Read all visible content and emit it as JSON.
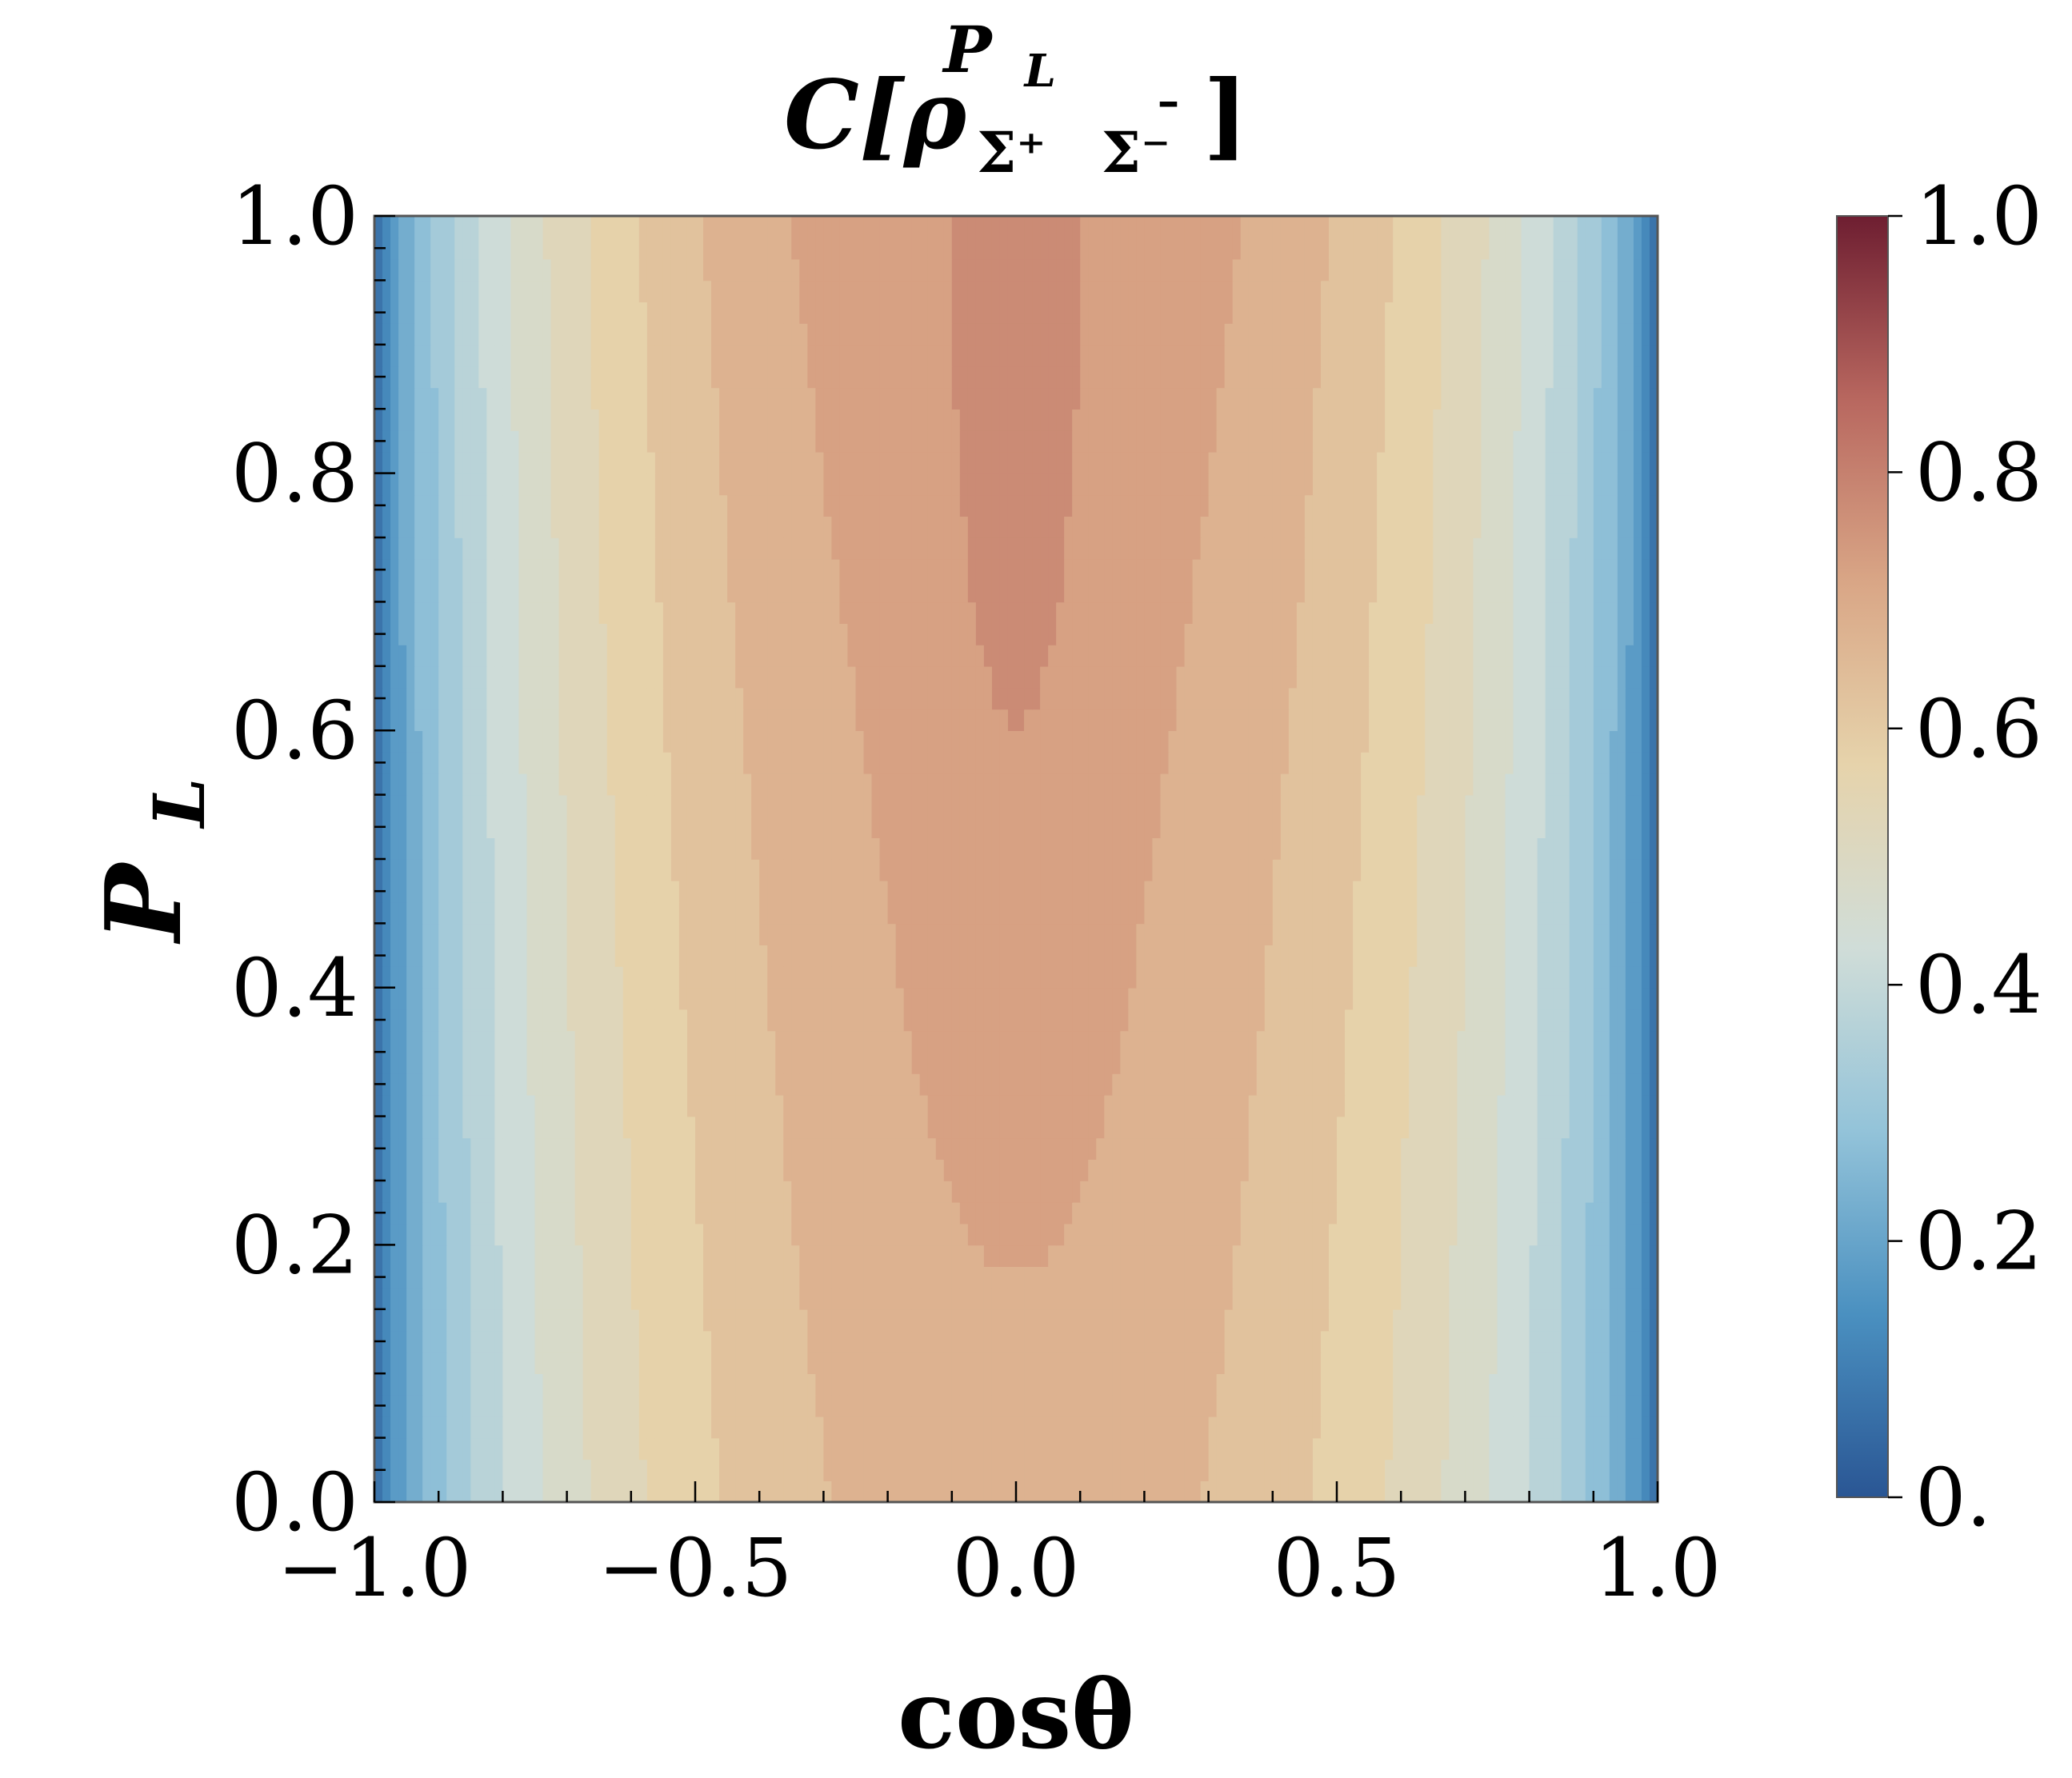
{
  "chart_data": {
    "type": "heatmap",
    "title": {
      "base": "C[ρ",
      "superscript_main": "P",
      "superscript_sub": "L",
      "subscript_first": "Σ⁺",
      "subscript_second_bar": "¯",
      "subscript_second": "Σ⁻",
      "close": "]"
    },
    "xlabel": "cosθ",
    "ylabel": {
      "main": "P",
      "sub": "L"
    },
    "xlim": [
      -1.0,
      1.0
    ],
    "ylim": [
      0.0,
      1.0
    ],
    "x_ticks": [
      {
        "value": -1.0,
        "label": "−1.0"
      },
      {
        "value": -0.5,
        "label": "−0.5"
      },
      {
        "value": 0.0,
        "label": "0.0"
      },
      {
        "value": 0.5,
        "label": "0.5"
      },
      {
        "value": 1.0,
        "label": "1.0"
      }
    ],
    "y_ticks": [
      {
        "value": 0.0,
        "label": "0.0"
      },
      {
        "value": 0.2,
        "label": "0.2"
      },
      {
        "value": 0.4,
        "label": "0.4"
      },
      {
        "value": 0.6,
        "label": "0.6"
      },
      {
        "value": 0.8,
        "label": "0.8"
      },
      {
        "value": 1.0,
        "label": "1.0"
      }
    ],
    "colorbar": {
      "range": [
        0.0,
        1.0
      ],
      "ticks": [
        {
          "value": 0.0,
          "label": "0."
        },
        {
          "value": 0.2,
          "label": "0.2"
        },
        {
          "value": 0.4,
          "label": "0.4"
        },
        {
          "value": 0.6,
          "label": "0.6"
        },
        {
          "value": 0.8,
          "label": "0.8"
        },
        {
          "value": 1.0,
          "label": "1.0"
        }
      ],
      "colormap": [
        "#2a5694",
        "#4a90c0",
        "#93c3d9",
        "#d0ddd8",
        "#e6d3ab",
        "#d9a686",
        "#b8675f",
        "#6e1e31"
      ]
    },
    "field_model": {
      "description": "concurrence vs cos theta and P_L",
      "edge_value": 0.0,
      "center_value_at_PL_0": 0.68,
      "center_value_at_PL_1": 0.75,
      "contour_levels": 20
    }
  }
}
